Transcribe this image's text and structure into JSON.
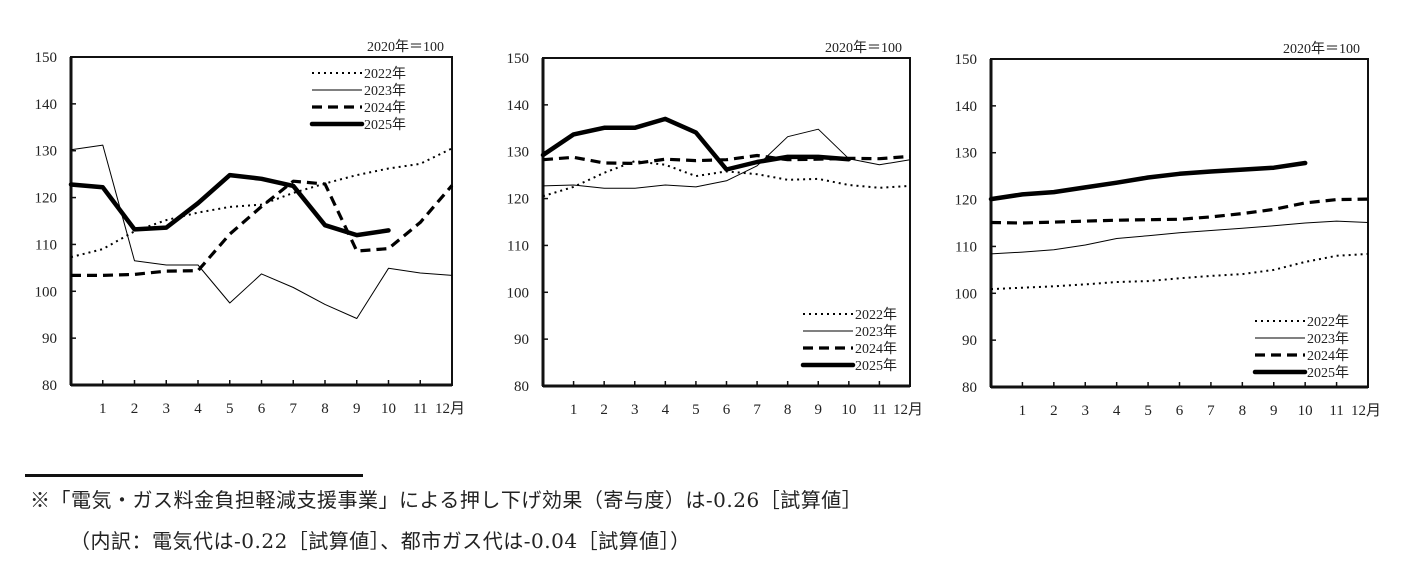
{
  "chart_data": [
    {
      "type": "line",
      "id": "chart-1",
      "unit_label": "2020年＝100",
      "ylim": [
        80,
        150
      ],
      "yticks": [
        80,
        90,
        100,
        110,
        120,
        130,
        140,
        150
      ],
      "x": [
        0,
        1,
        2,
        3,
        4,
        5,
        6,
        7,
        8,
        9,
        10,
        11,
        12
      ],
      "xtick_labels": [
        "1",
        "2",
        "3",
        "4",
        "5",
        "6",
        "7",
        "8",
        "9",
        "10",
        "11",
        "12月"
      ],
      "legend_position": "top-right",
      "grid": false,
      "series": [
        {
          "name": "2022年",
          "style": "dotted",
          "values": [
            107.3,
            109.0,
            112.8,
            115.2,
            116.8,
            118.0,
            118.5,
            121.0,
            123.0,
            124.8,
            126.2,
            127.2,
            130.5
          ]
        },
        {
          "name": "2023年",
          "style": "thin",
          "values": [
            130.2,
            131.2,
            106.5,
            105.6,
            105.6,
            97.5,
            103.7,
            100.8,
            97.2,
            94.2,
            104.9,
            103.9,
            103.4
          ]
        },
        {
          "name": "2024年",
          "style": "dashed",
          "values": [
            103.4,
            103.4,
            103.6,
            104.3,
            104.4,
            112.2,
            118.1,
            123.5,
            122.9,
            108.6,
            109.1,
            114.7,
            122.6
          ]
        },
        {
          "name": "2025年",
          "style": "thick",
          "values": [
            122.8,
            122.2,
            113.2,
            113.6,
            118.8,
            124.8,
            124.0,
            122.5,
            114.1,
            112.0,
            113.0,
            null,
            null
          ]
        }
      ]
    },
    {
      "type": "line",
      "id": "chart-2",
      "unit_label": "2020年＝100",
      "ylim": [
        80,
        150
      ],
      "yticks": [
        80,
        90,
        100,
        110,
        120,
        130,
        140,
        150
      ],
      "x": [
        0,
        1,
        2,
        3,
        4,
        5,
        6,
        7,
        8,
        9,
        10,
        11,
        12
      ],
      "xtick_labels": [
        "1",
        "2",
        "3",
        "4",
        "5",
        "6",
        "7",
        "8",
        "9",
        "10",
        "11",
        "12月"
      ],
      "legend_position": "bottom-right",
      "grid": false,
      "series": [
        {
          "name": "2022年",
          "style": "dotted",
          "values": [
            120.5,
            122.5,
            125.5,
            128.0,
            127.2,
            124.8,
            125.8,
            125.2,
            124.0,
            124.2,
            122.9,
            122.3,
            122.7
          ]
        },
        {
          "name": "2023年",
          "style": "thin",
          "values": [
            122.7,
            122.9,
            122.2,
            122.2,
            122.9,
            122.5,
            123.8,
            127.0,
            133.2,
            134.8,
            128.5,
            127.2,
            128.3
          ]
        },
        {
          "name": "2024年",
          "style": "dashed",
          "values": [
            128.3,
            128.8,
            127.6,
            127.5,
            128.4,
            128.1,
            128.3,
            129.2,
            128.3,
            128.4,
            128.6,
            128.5,
            129.0
          ]
        },
        {
          "name": "2025年",
          "style": "thick",
          "values": [
            129.3,
            133.7,
            135.1,
            135.1,
            137.0,
            134.1,
            126.2,
            127.8,
            128.9,
            128.9,
            128.4,
            null,
            null
          ]
        }
      ]
    },
    {
      "type": "line",
      "id": "chart-3",
      "unit_label": "2020年＝100",
      "ylim": [
        80,
        150
      ],
      "yticks": [
        80,
        90,
        100,
        110,
        120,
        130,
        140,
        150
      ],
      "x": [
        0,
        1,
        2,
        3,
        4,
        5,
        6,
        7,
        8,
        9,
        10,
        11,
        12
      ],
      "xtick_labels": [
        "1",
        "2",
        "3",
        "4",
        "5",
        "6",
        "7",
        "8",
        "9",
        "10",
        "11",
        "12月"
      ],
      "legend_position": "bottom-right",
      "grid": false,
      "series": [
        {
          "name": "2022年",
          "style": "dotted",
          "values": [
            100.9,
            101.2,
            101.5,
            101.9,
            102.4,
            102.6,
            103.2,
            103.7,
            104.1,
            105.0,
            106.7,
            108.0,
            108.4
          ]
        },
        {
          "name": "2023年",
          "style": "thin",
          "values": [
            108.4,
            108.8,
            109.3,
            110.3,
            111.7,
            112.3,
            112.9,
            113.4,
            113.9,
            114.4,
            115.0,
            115.4,
            115.1
          ]
        },
        {
          "name": "2024年",
          "style": "dashed",
          "values": [
            115.1,
            115.0,
            115.2,
            115.4,
            115.6,
            115.7,
            115.8,
            116.3,
            117.0,
            117.9,
            119.3,
            120.0,
            120.1
          ]
        },
        {
          "name": "2025年",
          "style": "thick",
          "values": [
            120.1,
            121.1,
            121.6,
            122.6,
            123.6,
            124.7,
            125.5,
            126.0,
            126.4,
            126.8,
            127.8,
            null,
            null
          ]
        }
      ]
    }
  ],
  "footnote": {
    "line1": "※「電気・ガス料金負担軽減支援事業」による押し下げ効果（寄与度）は-0.26［試算値］",
    "line2": "（内訳：電気代は-0.22［試算値］、都市ガス代は-0.04［試算値］）"
  }
}
